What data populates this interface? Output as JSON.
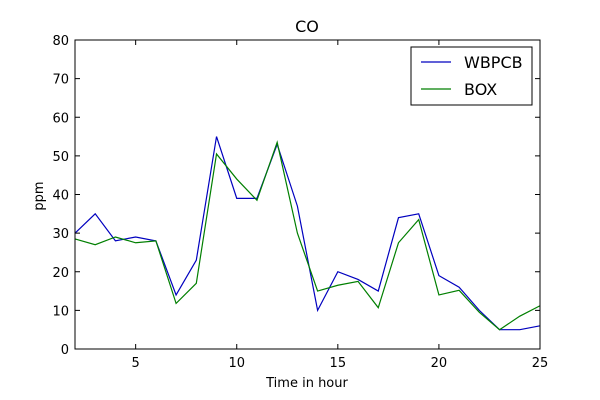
{
  "chart_data": {
    "type": "line",
    "title": "CO",
    "xlabel": "Time in hour",
    "ylabel": "ppm",
    "xlim": [
      2,
      25
    ],
    "ylim": [
      0,
      80
    ],
    "x_ticks": [
      5,
      10,
      15,
      20,
      25
    ],
    "y_ticks": [
      0,
      10,
      20,
      30,
      40,
      50,
      60,
      70,
      80
    ],
    "grid": false,
    "legend_position": "top-right",
    "x": [
      2,
      3,
      4,
      5,
      6,
      7,
      8,
      9,
      10,
      11,
      12,
      13,
      14,
      15,
      16,
      17,
      18,
      19,
      20,
      21,
      22,
      23,
      24,
      25
    ],
    "series": [
      {
        "name": "WBPCB",
        "color": "#0000bf",
        "values": [
          30,
          35,
          28,
          29,
          28,
          14,
          23,
          55,
          39,
          39,
          53,
          37,
          10,
          20,
          18,
          15,
          34,
          35,
          19,
          16,
          10,
          5,
          5,
          6
        ]
      },
      {
        "name": "BOX",
        "color": "#007f00",
        "values": [
          28.5,
          27,
          29,
          27.5,
          28,
          11.8,
          17,
          50.5,
          44,
          38.5,
          53.5,
          30,
          15,
          16.5,
          17.5,
          10.7,
          27.5,
          33.5,
          14,
          15.2,
          9.5,
          5,
          8.5,
          11.2
        ]
      }
    ]
  }
}
